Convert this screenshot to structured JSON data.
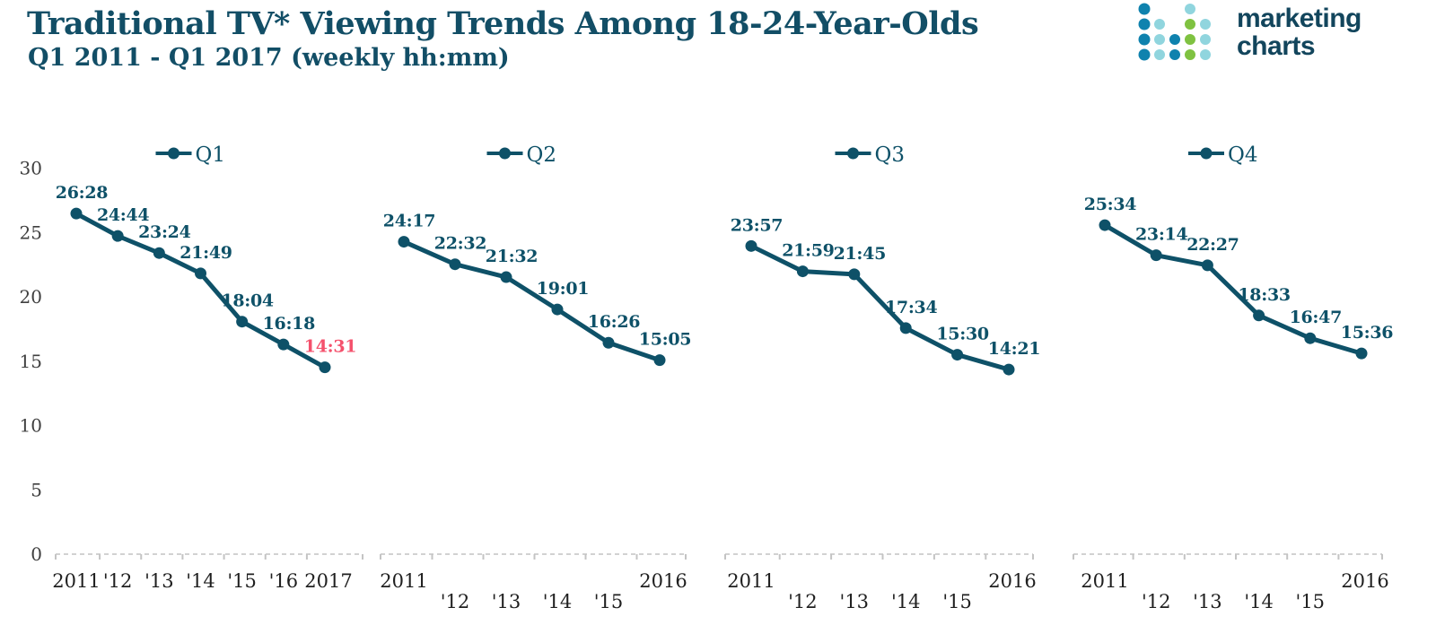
{
  "header": {
    "title": "Traditional TV* Viewing Trends Among 18-24-Year-Olds",
    "subtitle": "Q1 2011 - Q1 2017 (weekly hh:mm)"
  },
  "logo": {
    "line1": "marketing",
    "line2": "charts",
    "dot_colors": {
      "blue": "#0F82AE",
      "cyan": "#90D5DE",
      "green": "#7FC241"
    },
    "dots": [
      {
        "row": 0,
        "col": 0,
        "color": "blue"
      },
      {
        "row": 0,
        "col": 3,
        "color": "cyan"
      },
      {
        "row": 1,
        "col": 0,
        "color": "blue"
      },
      {
        "row": 1,
        "col": 1,
        "color": "cyan"
      },
      {
        "row": 1,
        "col": 3,
        "color": "green"
      },
      {
        "row": 1,
        "col": 4,
        "color": "cyan"
      },
      {
        "row": 2,
        "col": 0,
        "color": "blue"
      },
      {
        "row": 2,
        "col": 1,
        "color": "cyan"
      },
      {
        "row": 2,
        "col": 2,
        "color": "blue"
      },
      {
        "row": 2,
        "col": 3,
        "color": "green"
      },
      {
        "row": 2,
        "col": 4,
        "color": "cyan"
      },
      {
        "row": 3,
        "col": 0,
        "color": "blue"
      },
      {
        "row": 3,
        "col": 1,
        "color": "cyan"
      },
      {
        "row": 3,
        "col": 2,
        "color": "blue"
      },
      {
        "row": 3,
        "col": 3,
        "color": "green"
      },
      {
        "row": 3,
        "col": 4,
        "color": "cyan"
      }
    ]
  },
  "colors": {
    "series": "#0E5168",
    "title": "#124E66",
    "highlight": "#F4516C",
    "axis_line": "#D2D2D2",
    "tick": "#C4C4C4"
  },
  "y_axis": {
    "ticks": [
      "30",
      "25",
      "20",
      "15",
      "10",
      "5",
      "0"
    ],
    "min": 0,
    "max": 30
  },
  "chart_data": [
    {
      "type": "line",
      "name": "Q1",
      "categories": [
        "2011",
        "'12",
        "'13",
        "'14",
        "'15",
        "'16",
        "2017"
      ],
      "labels": [
        "26:28",
        "24:44",
        "23:24",
        "21:49",
        "18:04",
        "16:18",
        "14:31"
      ],
      "values": [
        26.47,
        24.73,
        23.4,
        21.82,
        18.07,
        16.3,
        14.52
      ],
      "ylim": [
        0,
        30
      ],
      "highlight_last_label": true,
      "stagger_x_labels": false
    },
    {
      "type": "line",
      "name": "Q2",
      "categories": [
        "2011",
        "'12",
        "'13",
        "'14",
        "'15",
        "2016"
      ],
      "labels": [
        "24:17",
        "22:32",
        "21:32",
        "19:01",
        "16:26",
        "15:05"
      ],
      "values": [
        24.28,
        22.53,
        21.53,
        19.02,
        16.43,
        15.08
      ],
      "ylim": [
        0,
        30
      ],
      "highlight_last_label": false,
      "stagger_x_labels": true
    },
    {
      "type": "line",
      "name": "Q3",
      "categories": [
        "2011",
        "'12",
        "'13",
        "'14",
        "'15",
        "2016"
      ],
      "labels": [
        "23:57",
        "21:59",
        "21:45",
        "17:34",
        "15:30",
        "14:21"
      ],
      "values": [
        23.95,
        21.98,
        21.75,
        17.57,
        15.5,
        14.35
      ],
      "ylim": [
        0,
        30
      ],
      "highlight_last_label": false,
      "stagger_x_labels": true
    },
    {
      "type": "line",
      "name": "Q4",
      "categories": [
        "2011",
        "'12",
        "'13",
        "'14",
        "'15",
        "2016"
      ],
      "labels": [
        "25:34",
        "23:14",
        "22:27",
        "18:33",
        "16:47",
        "15:36"
      ],
      "values": [
        25.57,
        23.23,
        22.45,
        18.55,
        16.78,
        15.6
      ],
      "ylim": [
        0,
        30
      ],
      "highlight_last_label": false,
      "stagger_x_labels": true
    }
  ]
}
